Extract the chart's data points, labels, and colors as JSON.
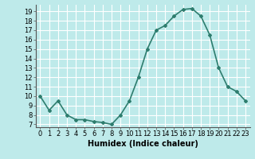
{
  "x": [
    0,
    1,
    2,
    3,
    4,
    5,
    6,
    7,
    8,
    9,
    10,
    11,
    12,
    13,
    14,
    15,
    16,
    17,
    18,
    19,
    20,
    21,
    22,
    23
  ],
  "y": [
    10,
    8.5,
    9.5,
    8,
    7.5,
    7.5,
    7.3,
    7.2,
    7.0,
    8.0,
    9.5,
    12,
    15,
    17,
    17.5,
    18.5,
    19.2,
    19.3,
    18.5,
    16.5,
    13,
    11,
    10.5,
    9.5
  ],
  "line_color": "#2e7d6e",
  "marker": "D",
  "marker_size": 2,
  "bg_color": "#beeaea",
  "grid_color": "#ffffff",
  "xlabel": "Humidex (Indice chaleur)",
  "ylabel_ticks": [
    7,
    8,
    9,
    10,
    11,
    12,
    13,
    14,
    15,
    16,
    17,
    18,
    19
  ],
  "ylim": [
    6.7,
    19.7
  ],
  "xlim": [
    -0.5,
    23.5
  ],
  "xticks": [
    0,
    1,
    2,
    3,
    4,
    5,
    6,
    7,
    8,
    9,
    10,
    11,
    12,
    13,
    14,
    15,
    16,
    17,
    18,
    19,
    20,
    21,
    22,
    23
  ],
  "xlabel_fontsize": 7,
  "tick_fontsize": 6,
  "line_width": 1.2
}
